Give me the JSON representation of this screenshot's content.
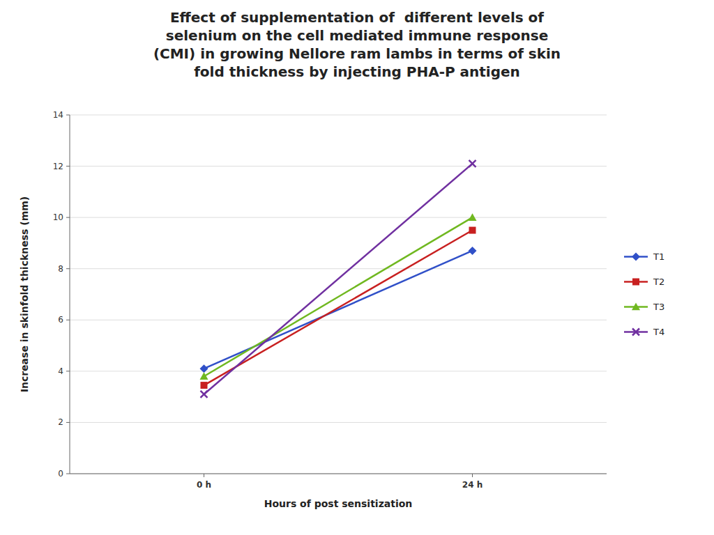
{
  "chart_data": {
    "type": "line",
    "title": "Effect of supplementation of  different levels of\nselenium on the cell mediated immune response\n(CMI) in growing Nellore ram lambs in terms of skin\nfold thickness by injecting PHA-P antigen",
    "xlabel": "Hours of post sensitization",
    "ylabel": "Increase in skinfold thickness (mm)",
    "categories": [
      "0 h",
      "24 h"
    ],
    "series": [
      {
        "name": "T1",
        "values": [
          4.1,
          8.7
        ],
        "color": "#3050c8",
        "marker": "diamond"
      },
      {
        "name": "T2",
        "values": [
          3.45,
          9.5
        ],
        "color": "#c82020",
        "marker": "square"
      },
      {
        "name": "T3",
        "values": [
          3.8,
          10.0
        ],
        "color": "#70b820",
        "marker": "triangle"
      },
      {
        "name": "T4",
        "values": [
          3.1,
          12.1
        ],
        "color": "#7030a0",
        "marker": "x"
      }
    ],
    "ylim": [
      0,
      14
    ],
    "yticks": [
      0,
      2,
      4,
      6,
      8,
      10,
      12,
      14
    ],
    "grid": true,
    "legend": "right"
  }
}
